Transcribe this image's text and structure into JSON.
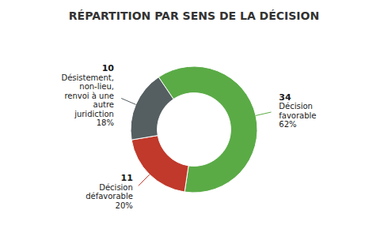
{
  "chart_data": {
    "type": "pie",
    "title": "RÉPARTITION PAR SENS DE LA DÉCISION",
    "categories": [
      "Décision\nfavorable",
      "Décision\ndéfavorable",
      "Désistement,\nnon-lieu,\nrenvoi à une\nautre\njuridiction"
    ],
    "values": [
      34,
      11,
      10
    ],
    "percentages": [
      {
        "value": 62,
        "label": "62%"
      },
      {
        "value": 20,
        "label": "20%"
      },
      {
        "value": 18,
        "label": "18%"
      }
    ],
    "colors": [
      "#5aab46",
      "#c0392b",
      "#555f61"
    ],
    "data_labels": true
  }
}
